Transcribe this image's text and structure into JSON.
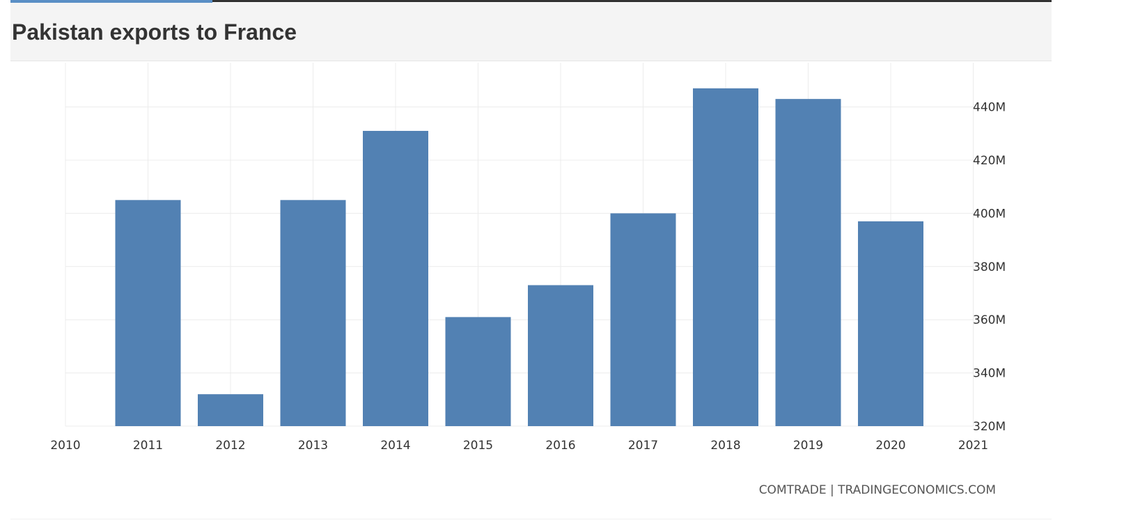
{
  "header": {
    "title": "Pakistan exports to France"
  },
  "chart_data": {
    "type": "bar",
    "title": "Pakistan exports to France",
    "xlabel": "",
    "ylabel": "",
    "categories": [
      "2011",
      "2012",
      "2013",
      "2014",
      "2015",
      "2016",
      "2017",
      "2018",
      "2019",
      "2020"
    ],
    "values": [
      405,
      332,
      405,
      431,
      361,
      373,
      400,
      447,
      443,
      397
    ],
    "unit": "M",
    "x_tick_labels": [
      "2010",
      "2011",
      "2012",
      "2013",
      "2014",
      "2015",
      "2016",
      "2017",
      "2018",
      "2019",
      "2020",
      "2021"
    ],
    "y_tick_labels": [
      "320M",
      "340M",
      "360M",
      "380M",
      "400M",
      "420M",
      "440M"
    ],
    "ylim": [
      320,
      455
    ],
    "y_axis_side": "right",
    "grid": true,
    "legend": "none",
    "bar_color": "#5281b3",
    "source": "COMTRADE | TRADINGECONOMICS.COM"
  }
}
